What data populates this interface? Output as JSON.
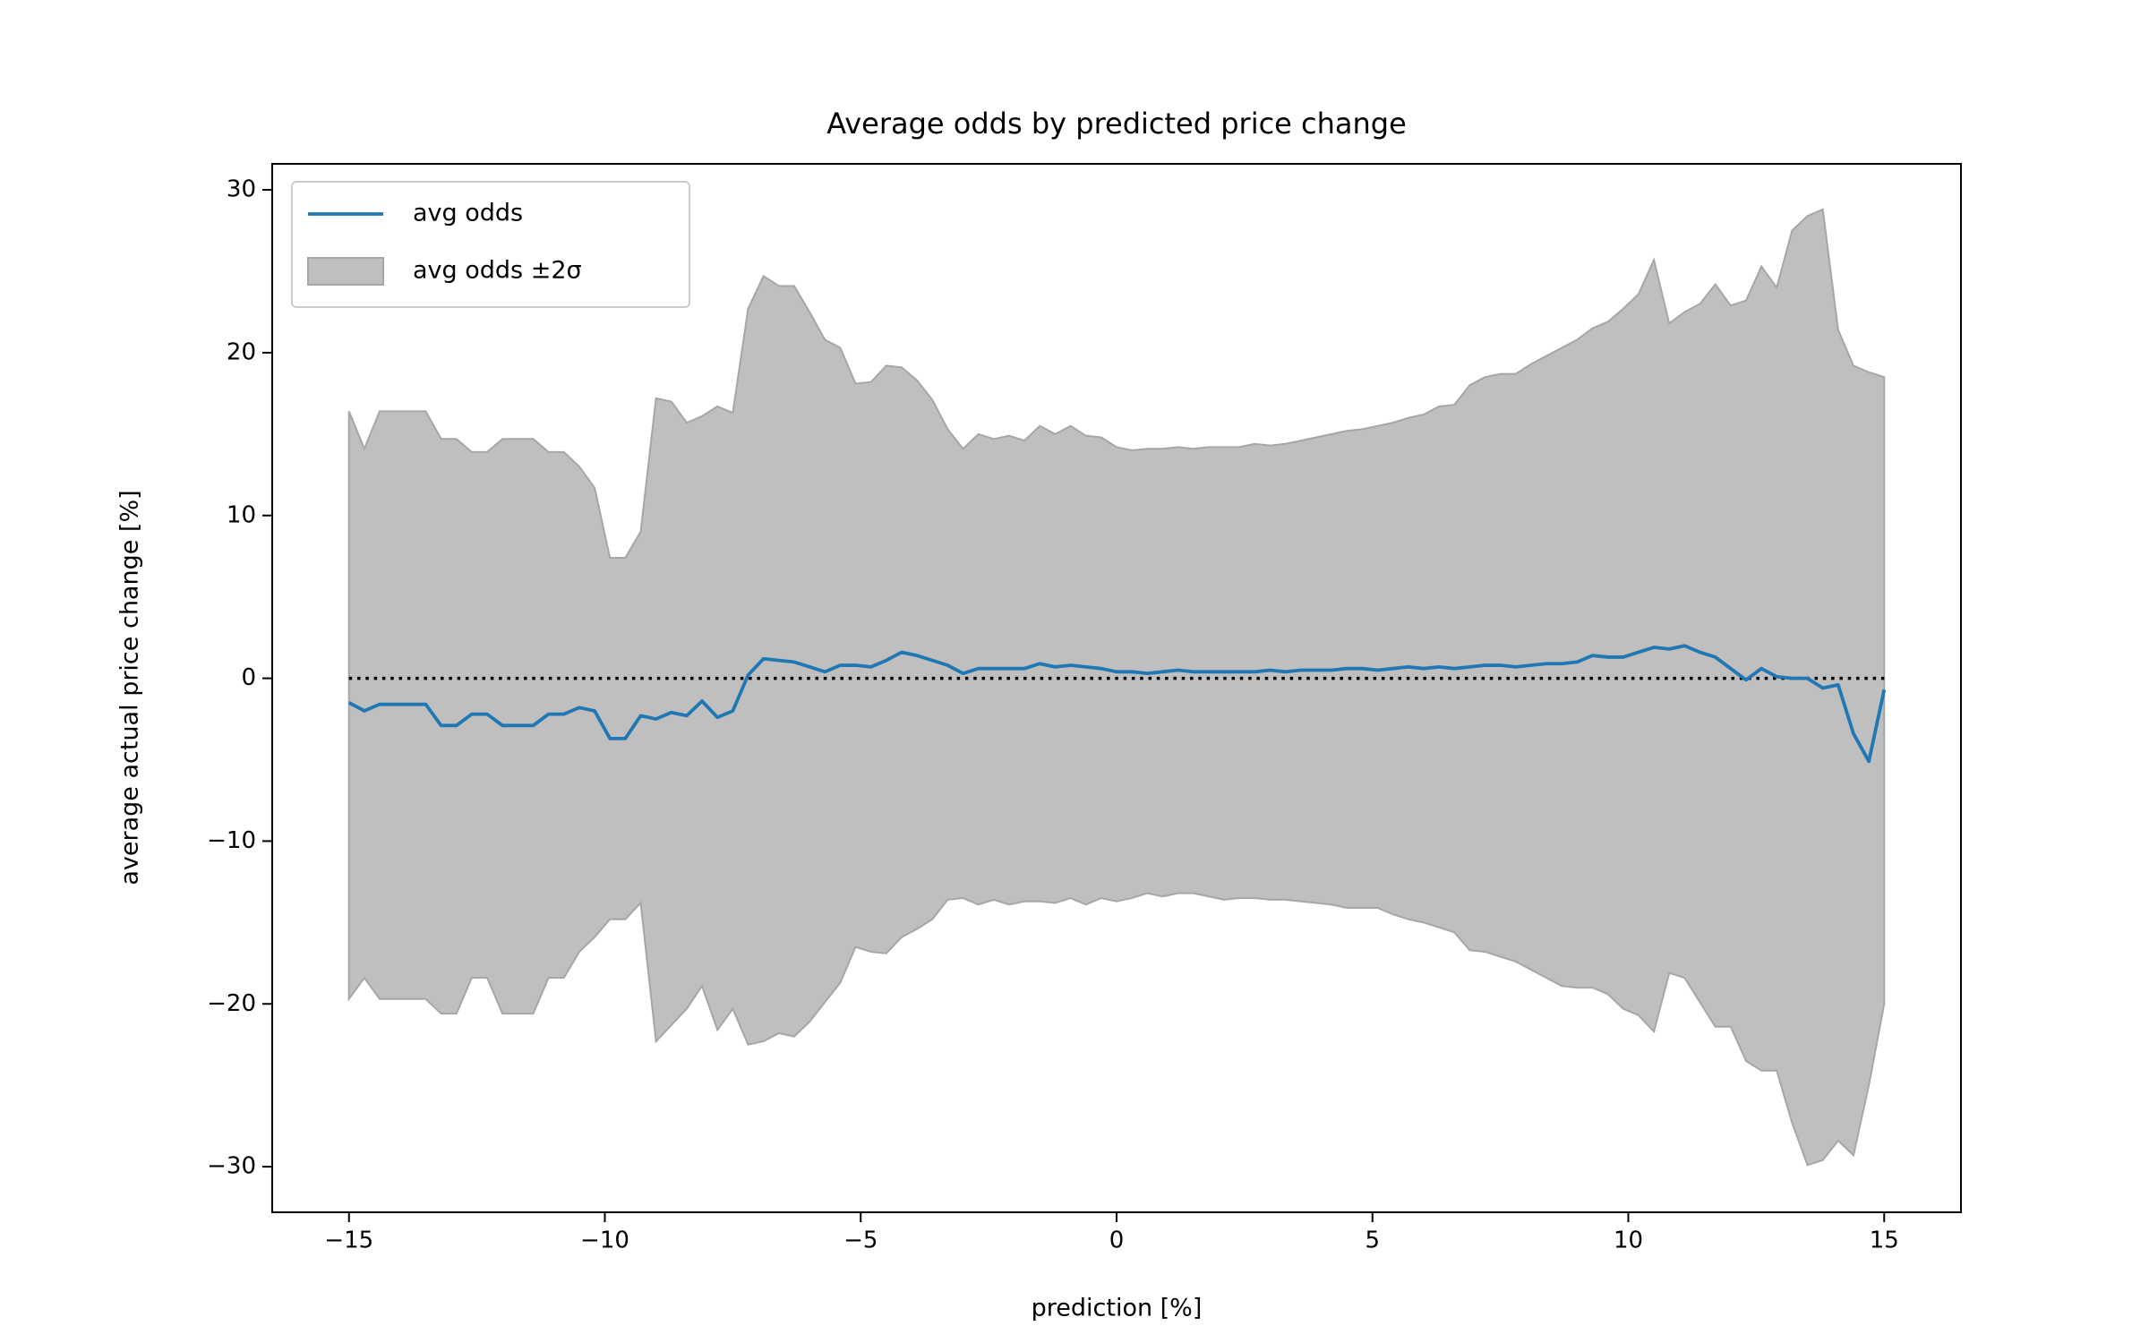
{
  "chart_data": {
    "type": "line",
    "title": "Average odds by predicted price change",
    "x_label": "prediction [%]",
    "y_label": "average actual price change [%]",
    "x": [
      -15,
      -14.7,
      -14.4,
      -14.1,
      -13.8,
      -13.5,
      -13.2,
      -12.9,
      -12.6,
      -12.3,
      -12,
      -11.7,
      -11.4,
      -11.1,
      -10.8,
      -10.5,
      -10.2,
      -9.9,
      -9.6,
      -9.3,
      -9,
      -8.7,
      -8.4,
      -8.1,
      -7.8,
      -7.5,
      -7.2,
      -6.9,
      -6.6,
      -6.3,
      -6,
      -5.7,
      -5.4,
      -5.1,
      -4.8,
      -4.5,
      -4.2,
      -3.9,
      -3.6,
      -3.3,
      -3,
      -2.7,
      -2.4,
      -2.1,
      -1.8,
      -1.5,
      -1.2,
      -0.9,
      -0.6,
      -0.3,
      0,
      0.3,
      0.6,
      0.9,
      1.2,
      1.5,
      1.8,
      2.1,
      2.4,
      2.7,
      3,
      3.3,
      3.6,
      3.9,
      4.2,
      4.5,
      4.8,
      5.1,
      5.4,
      5.7,
      6,
      6.3,
      6.6,
      6.9,
      7.2,
      7.5,
      7.8,
      8.1,
      8.4,
      8.7,
      9,
      9.3,
      9.6,
      9.9,
      10.2,
      10.5,
      10.8,
      11.1,
      11.4,
      11.7,
      12,
      12.3,
      12.6,
      12.9,
      13.2,
      13.5,
      13.8,
      14.1,
      14.4,
      14.7,
      15
    ],
    "series": [
      {
        "name": "avg odds",
        "color": "#1f77b4",
        "values": [
          -1.5,
          -2.0,
          -1.6,
          -1.6,
          -1.6,
          -1.6,
          -2.9,
          -2.9,
          -2.2,
          -2.2,
          -2.9,
          -2.9,
          -2.9,
          -2.2,
          -2.2,
          -1.8,
          -2.0,
          -3.7,
          -3.7,
          -2.3,
          -2.5,
          -2.1,
          -2.3,
          -1.4,
          -2.4,
          -2.0,
          0.2,
          1.2,
          1.1,
          1.0,
          0.7,
          0.4,
          0.8,
          0.8,
          0.7,
          1.1,
          1.6,
          1.4,
          1.1,
          0.8,
          0.3,
          0.6,
          0.6,
          0.6,
          0.6,
          0.9,
          0.7,
          0.8,
          0.7,
          0.6,
          0.4,
          0.4,
          0.3,
          0.4,
          0.5,
          0.4,
          0.4,
          0.4,
          0.4,
          0.4,
          0.5,
          0.4,
          0.5,
          0.5,
          0.5,
          0.6,
          0.6,
          0.5,
          0.6,
          0.7,
          0.6,
          0.7,
          0.6,
          0.7,
          0.8,
          0.8,
          0.7,
          0.8,
          0.9,
          0.9,
          1.0,
          1.4,
          1.3,
          1.3,
          1.6,
          1.9,
          1.8,
          2.0,
          1.6,
          1.3,
          0.6,
          -0.1,
          0.6,
          0.1,
          0.0,
          0.0,
          -0.6,
          -0.4,
          -3.4,
          -5.1,
          -0.7
        ]
      }
    ],
    "band": {
      "name": "avg odds ±2σ",
      "color": "#bfbfbf",
      "edge_color": "#a6a6a6",
      "upper": [
        16.4,
        14.1,
        16.4,
        16.4,
        16.4,
        16.4,
        14.7,
        14.7,
        13.9,
        13.9,
        14.7,
        14.7,
        14.7,
        13.9,
        13.9,
        13.0,
        11.7,
        7.4,
        7.4,
        9.0,
        17.2,
        17.0,
        15.7,
        16.1,
        16.7,
        16.3,
        22.7,
        24.7,
        24.1,
        24.1,
        22.5,
        20.8,
        20.3,
        18.1,
        18.2,
        19.2,
        19.1,
        18.3,
        17.1,
        15.3,
        14.1,
        15.0,
        14.7,
        14.9,
        14.6,
        15.5,
        15.0,
        15.5,
        14.9,
        14.8,
        14.2,
        14.0,
        14.1,
        14.1,
        14.2,
        14.1,
        14.2,
        14.2,
        14.2,
        14.4,
        14.3,
        14.4,
        14.6,
        14.8,
        15.0,
        15.2,
        15.3,
        15.5,
        15.7,
        16.0,
        16.2,
        16.7,
        16.8,
        18.0,
        18.5,
        18.7,
        18.7,
        19.3,
        19.8,
        20.3,
        20.8,
        21.5,
        21.9,
        22.7,
        23.6,
        25.7,
        21.8,
        22.5,
        23.0,
        24.2,
        22.9,
        23.2,
        25.3,
        24.0,
        27.5,
        28.4,
        28.8,
        21.4,
        19.2,
        18.8,
        18.5
      ],
      "lower": [
        -19.7,
        -18.4,
        -19.7,
        -19.7,
        -19.7,
        -19.7,
        -20.6,
        -20.6,
        -18.4,
        -18.4,
        -20.6,
        -20.6,
        -20.6,
        -18.4,
        -18.4,
        -16.8,
        -15.9,
        -14.8,
        -14.8,
        -13.8,
        -22.3,
        -21.3,
        -20.3,
        -18.9,
        -21.6,
        -20.3,
        -22.5,
        -22.3,
        -21.8,
        -22.0,
        -21.1,
        -19.9,
        -18.7,
        -16.5,
        -16.8,
        -16.9,
        -15.9,
        -15.4,
        -14.8,
        -13.6,
        -13.5,
        -13.9,
        -13.6,
        -13.9,
        -13.7,
        -13.7,
        -13.8,
        -13.5,
        -13.9,
        -13.5,
        -13.7,
        -13.5,
        -13.2,
        -13.4,
        -13.2,
        -13.2,
        -13.4,
        -13.6,
        -13.5,
        -13.5,
        -13.6,
        -13.6,
        -13.7,
        -13.8,
        -13.9,
        -14.1,
        -14.1,
        -14.1,
        -14.5,
        -14.8,
        -15.0,
        -15.3,
        -15.6,
        -16.7,
        -16.8,
        -17.1,
        -17.4,
        -17.9,
        -18.4,
        -18.9,
        -19.0,
        -19.0,
        -19.4,
        -20.3,
        -20.7,
        -21.7,
        -18.1,
        -18.4,
        -19.9,
        -21.4,
        -21.4,
        -23.5,
        -24.1,
        -24.1,
        -27.3,
        -29.9,
        -29.6,
        -28.4,
        -29.3,
        -25.0,
        -20.0
      ]
    },
    "reference_line": {
      "value": 0,
      "color": "#000000",
      "style": "dotted"
    },
    "xlim": [
      -16.5,
      16.5
    ],
    "ylim": [
      -32.8,
      31.6
    ],
    "xticks": [
      {
        "value": -15,
        "label": "−15"
      },
      {
        "value": -10,
        "label": "−10"
      },
      {
        "value": -5,
        "label": "−5"
      },
      0,
      5,
      10,
      15
    ],
    "yticks": [
      {
        "value": -30,
        "label": "−30"
      },
      {
        "value": -20,
        "label": "−20"
      },
      {
        "value": -10,
        "label": "−10"
      },
      0,
      10,
      20,
      30
    ],
    "grid": false,
    "legend": "upper left"
  }
}
